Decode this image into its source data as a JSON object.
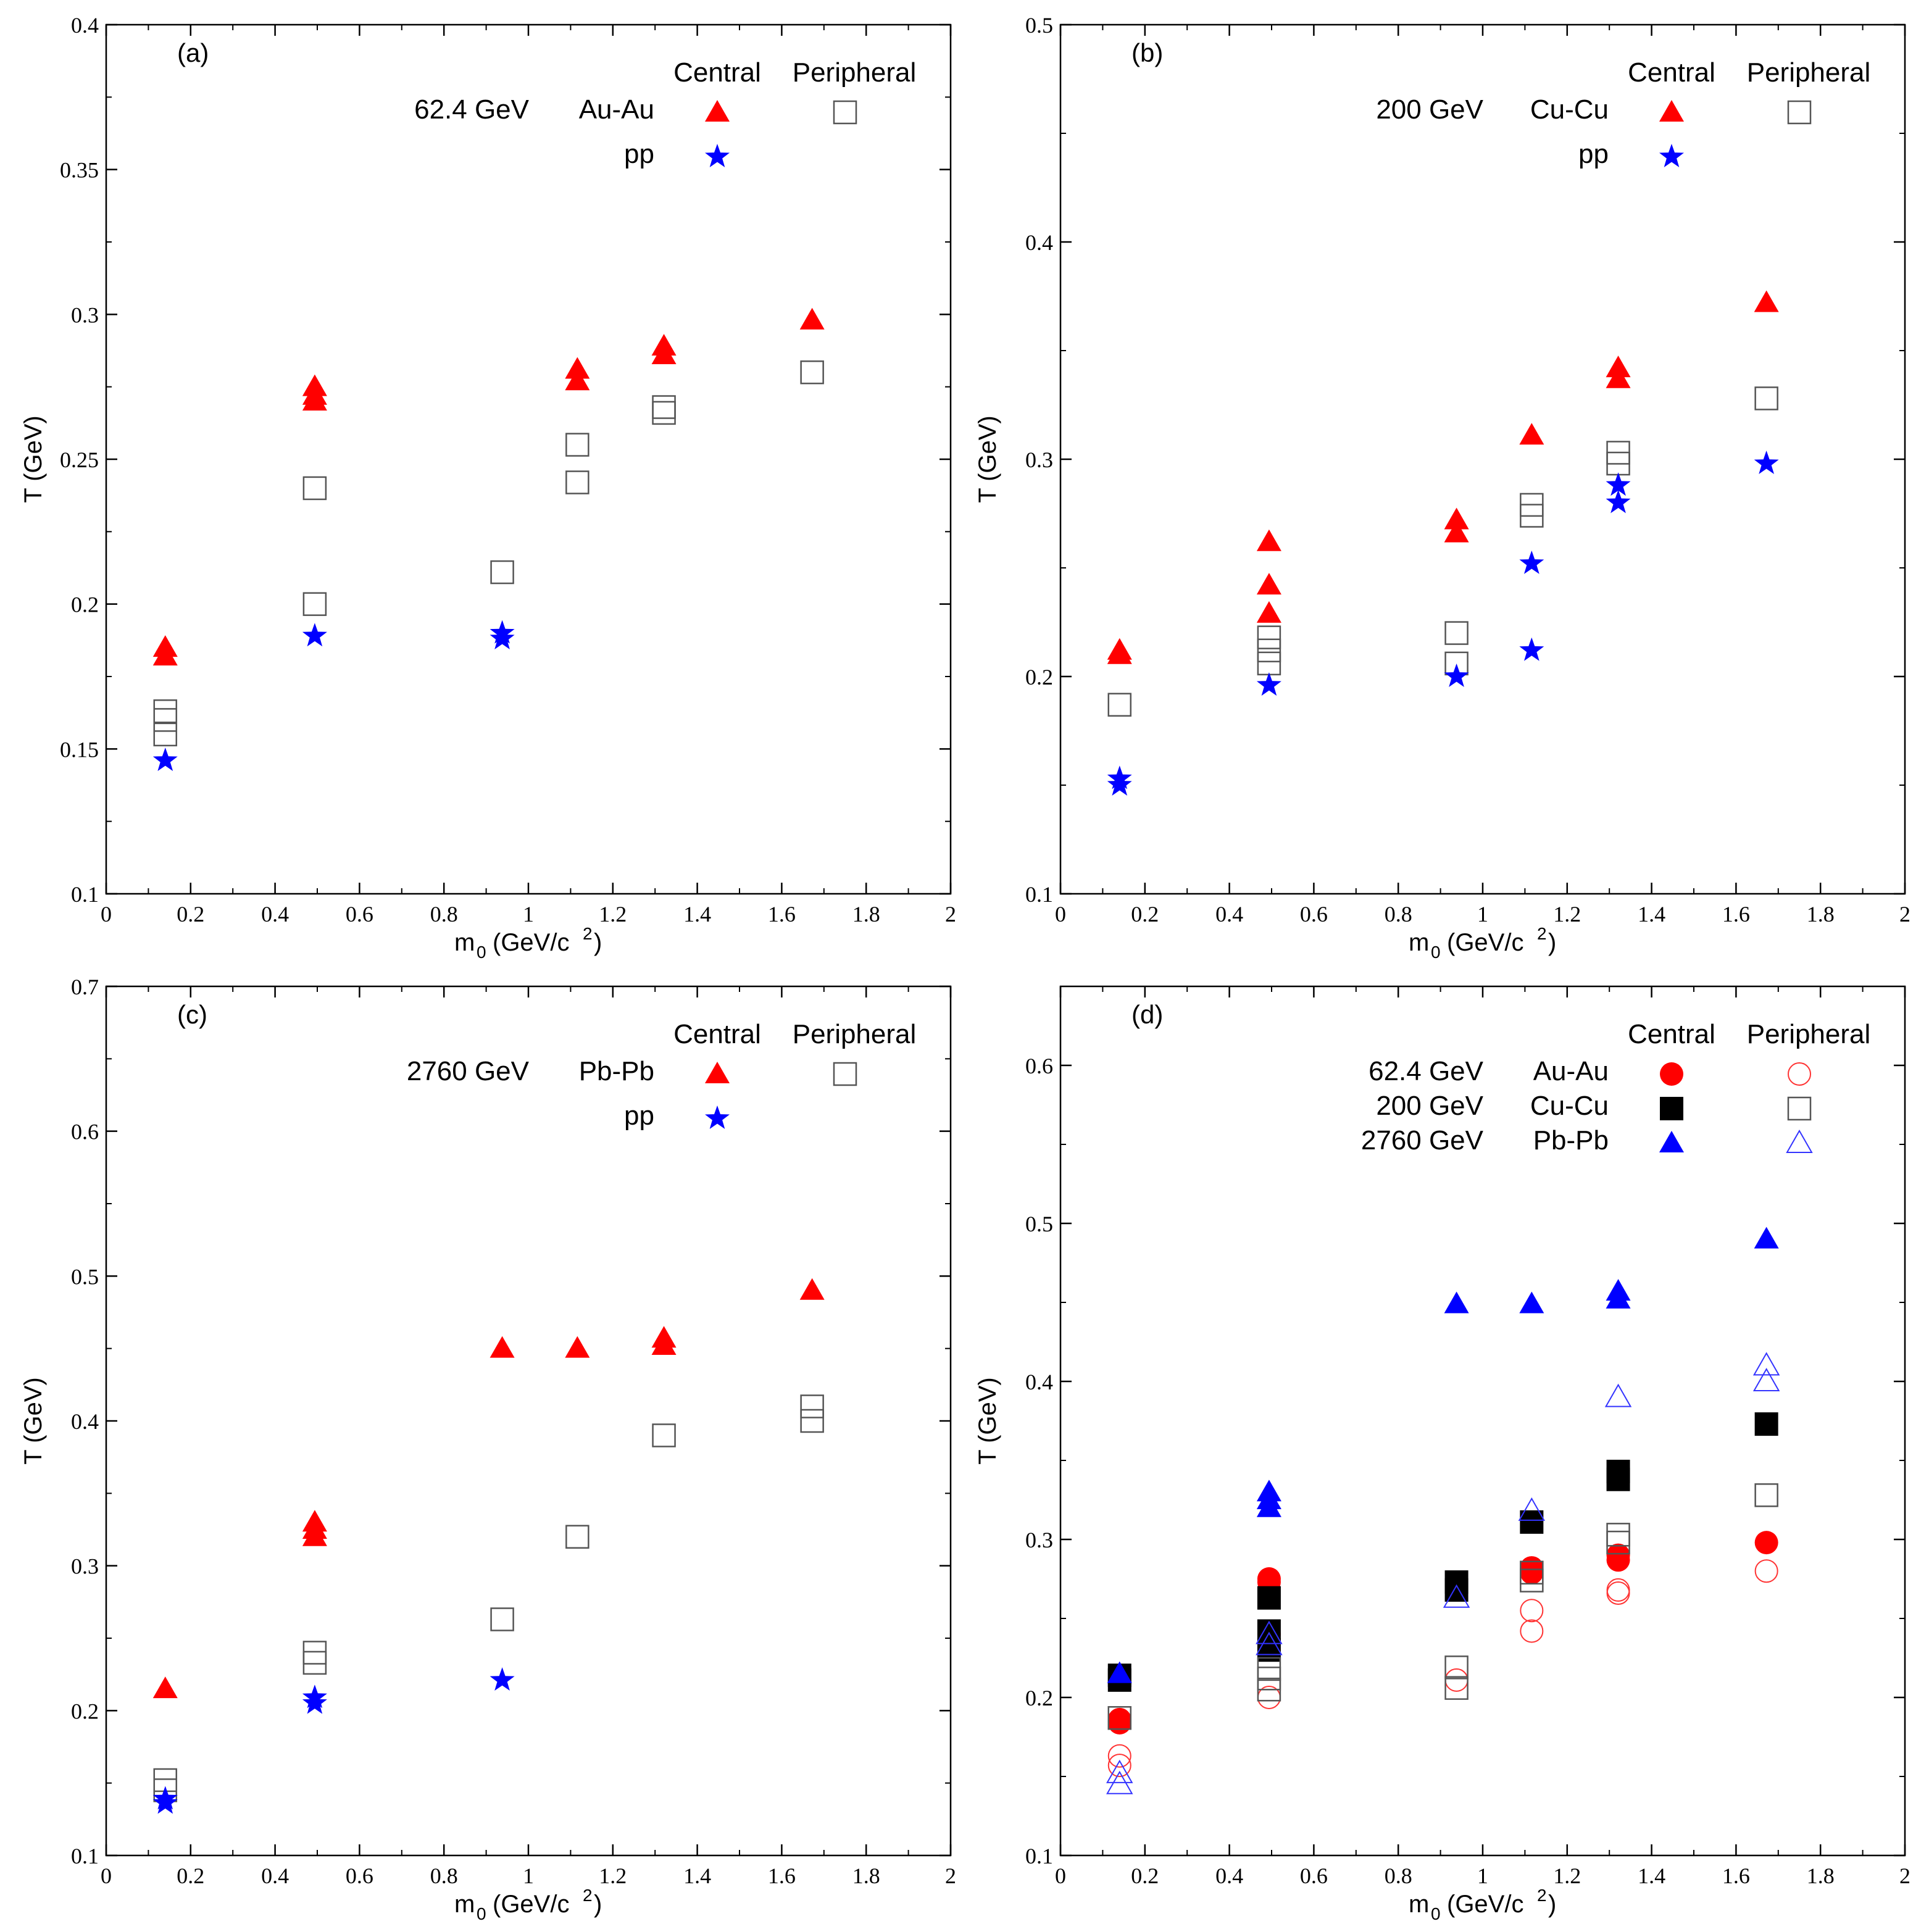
{
  "chart_data": [
    {
      "type": "scatter",
      "panel_label": "(a)",
      "xlabel": "m",
      "xlabel_sub": "0",
      "xlabel_unit": "(GeV/c",
      "xlabel_sup": "2",
      "xlabel_close": ")",
      "ylabel": "T (GeV)",
      "xlim": [
        0,
        2
      ],
      "ylim": [
        0.1,
        0.4
      ],
      "xticks": [
        0,
        0.2,
        0.4,
        0.6,
        0.8,
        1,
        1.2,
        1.4,
        1.6,
        1.8,
        2
      ],
      "xtick_labels": [
        "0",
        "0.2",
        "0.4",
        "0.6",
        "0.8",
        "1",
        "1.2",
        "1.4",
        "1.6",
        "1.8",
        "2"
      ],
      "yticks": [
        0.1,
        0.15,
        0.2,
        0.25,
        0.3,
        0.35,
        0.4
      ],
      "ytick_labels": [
        "0.1",
        "0.15",
        "0.2",
        "0.25",
        "0.3",
        "0.35",
        "0.4"
      ],
      "legend": {
        "header_central": "Central",
        "header_peripheral": "Peripheral",
        "rows": [
          {
            "energy": "62.4 GeV",
            "system": "Au-Au",
            "central": "tri-red",
            "peripheral": "square-open"
          },
          {
            "energy": "",
            "system": "pp",
            "central": "star-blue",
            "peripheral": ""
          }
        ]
      },
      "series": [
        {
          "name": "62.4 GeV Au-Au Central",
          "marker": "tri-red",
          "points": [
            [
              0.14,
              0.182
            ],
            [
              0.14,
              0.185
            ],
            [
              0.494,
              0.27
            ],
            [
              0.494,
              0.272
            ],
            [
              0.494,
              0.275
            ],
            [
              0.938,
              null
            ],
            [
              1.116,
              0.277
            ],
            [
              1.116,
              0.281
            ],
            [
              1.321,
              0.286
            ],
            [
              1.321,
              0.289
            ],
            [
              1.672,
              0.298
            ]
          ]
        },
        {
          "name": "62.4 GeV Au-Au Peripheral",
          "marker": "square-open",
          "points": [
            [
              0.14,
              0.155
            ],
            [
              0.14,
              0.16
            ],
            [
              0.14,
              0.163
            ],
            [
              0.494,
              0.2
            ],
            [
              0.494,
              0.24
            ],
            [
              0.938,
              0.211
            ],
            [
              1.116,
              0.242
            ],
            [
              1.116,
              0.255
            ],
            [
              1.321,
              0.266
            ],
            [
              1.321,
              0.268
            ],
            [
              1.672,
              0.28
            ]
          ]
        },
        {
          "name": "pp",
          "marker": "star-blue",
          "points": [
            [
              0.14,
              0.146
            ],
            [
              0.494,
              0.189
            ],
            [
              0.938,
              0.188
            ],
            [
              0.938,
              0.19
            ]
          ]
        }
      ]
    },
    {
      "type": "scatter",
      "panel_label": "(b)",
      "xlabel": "m",
      "xlabel_sub": "0",
      "xlabel_unit": "(GeV/c",
      "xlabel_sup": "2",
      "xlabel_close": ")",
      "ylabel": "T (GeV)",
      "xlim": [
        0,
        2
      ],
      "ylim": [
        0.1,
        0.5
      ],
      "xticks": [
        0,
        0.2,
        0.4,
        0.6,
        0.8,
        1,
        1.2,
        1.4,
        1.6,
        1.8,
        2
      ],
      "xtick_labels": [
        "0",
        "0.2",
        "0.4",
        "0.6",
        "0.8",
        "1",
        "1.2",
        "1.4",
        "1.6",
        "1.8",
        "2"
      ],
      "yticks": [
        0.1,
        0.2,
        0.3,
        0.4,
        0.5
      ],
      "ytick_labels": [
        "0.1",
        "0.2",
        "0.3",
        "0.4",
        "0.5"
      ],
      "legend": {
        "header_central": "Central",
        "header_peripheral": "Peripheral",
        "rows": [
          {
            "energy": "200 GeV",
            "system": "Cu-Cu",
            "central": "tri-red",
            "peripheral": "square-open"
          },
          {
            "energy": "",
            "system": "pp",
            "central": "star-blue",
            "peripheral": ""
          }
        ]
      },
      "series": [
        {
          "name": "200 GeV Cu-Cu Central",
          "marker": "tri-red",
          "points": [
            [
              0.14,
              0.21
            ],
            [
              0.14,
              0.212
            ],
            [
              0.494,
              0.229
            ],
            [
              0.494,
              0.242
            ],
            [
              0.494,
              0.262
            ],
            [
              0.938,
              0.266
            ],
            [
              0.938,
              0.272
            ],
            [
              1.116,
              0.311
            ],
            [
              1.321,
              0.337
            ],
            [
              1.321,
              0.342
            ],
            [
              1.672,
              0.372
            ]
          ]
        },
        {
          "name": "200 GeV Cu-Cu Peripheral",
          "marker": "square-open",
          "points": [
            [
              0.14,
              0.187
            ],
            [
              0.494,
              0.206
            ],
            [
              0.494,
              0.212
            ],
            [
              0.494,
              0.218
            ],
            [
              0.938,
              0.206
            ],
            [
              0.938,
              0.22
            ],
            [
              1.116,
              0.274
            ],
            [
              1.116,
              0.279
            ],
            [
              1.321,
              0.298
            ],
            [
              1.321,
              0.303
            ],
            [
              1.672,
              0.328
            ]
          ]
        },
        {
          "name": "pp",
          "marker": "star-blue",
          "points": [
            [
              0.14,
              0.15
            ],
            [
              0.14,
              0.153
            ],
            [
              0.494,
              0.196
            ],
            [
              0.938,
              0.2
            ],
            [
              1.116,
              0.212
            ],
            [
              1.116,
              0.252
            ],
            [
              1.321,
              0.28
            ],
            [
              1.321,
              0.288
            ],
            [
              1.672,
              0.298
            ]
          ]
        }
      ]
    },
    {
      "type": "scatter",
      "panel_label": "(c)",
      "xlabel": "m",
      "xlabel_sub": "0",
      "xlabel_unit": "(GeV/c",
      "xlabel_sup": "2",
      "xlabel_close": ")",
      "ylabel": "T (GeV)",
      "xlim": [
        0,
        2
      ],
      "ylim": [
        0.1,
        0.7
      ],
      "xticks": [
        0,
        0.2,
        0.4,
        0.6,
        0.8,
        1,
        1.2,
        1.4,
        1.6,
        1.8,
        2
      ],
      "xtick_labels": [
        "0",
        "0.2",
        "0.4",
        "0.6",
        "0.8",
        "1",
        "1.2",
        "1.4",
        "1.6",
        "1.8",
        "2"
      ],
      "yticks": [
        0.1,
        0.2,
        0.3,
        0.4,
        0.5,
        0.6,
        0.7
      ],
      "ytick_labels": [
        "0.1",
        "0.2",
        "0.3",
        "0.4",
        "0.5",
        "0.6",
        "0.7"
      ],
      "legend": {
        "header_central": "Central",
        "header_peripheral": "Peripheral",
        "rows": [
          {
            "energy": "2760 GeV",
            "system": "Pb-Pb",
            "central": "tri-red",
            "peripheral": "square-open"
          },
          {
            "energy": "",
            "system": "pp",
            "central": "star-blue",
            "peripheral": ""
          }
        ]
      },
      "series": [
        {
          "name": "2760 GeV Pb-Pb Central",
          "marker": "tri-red",
          "points": [
            [
              0.14,
              0.215
            ],
            [
              0.494,
              0.32
            ],
            [
              0.494,
              0.325
            ],
            [
              0.494,
              0.33
            ],
            [
              0.938,
              0.45
            ],
            [
              1.116,
              0.45
            ],
            [
              1.321,
              0.452
            ],
            [
              1.321,
              0.457
            ],
            [
              1.672,
              0.49
            ]
          ]
        },
        {
          "name": "2760 GeV Pb-Pb Peripheral",
          "marker": "square-open",
          "points": [
            [
              0.14,
              0.145
            ],
            [
              0.14,
              0.152
            ],
            [
              0.494,
              0.233
            ],
            [
              0.494,
              0.24
            ],
            [
              0.938,
              0.263
            ],
            [
              1.116,
              0.32
            ],
            [
              1.321,
              0.39
            ],
            [
              1.672,
              0.4
            ],
            [
              1.672,
              0.41
            ]
          ]
        },
        {
          "name": "pp",
          "marker": "star-blue",
          "points": [
            [
              0.14,
              0.136
            ],
            [
              0.14,
              0.139
            ],
            [
              0.494,
              0.205
            ],
            [
              0.494,
              0.209
            ],
            [
              0.938,
              0.221
            ]
          ]
        }
      ]
    },
    {
      "type": "scatter",
      "panel_label": "(d)",
      "xlabel": "m",
      "xlabel_sub": "0",
      "xlabel_unit": "(GeV/c",
      "xlabel_sup": "2",
      "xlabel_close": ")",
      "ylabel": "T (GeV)",
      "xlim": [
        0,
        2
      ],
      "ylim": [
        0.1,
        0.65
      ],
      "xticks": [
        0,
        0.2,
        0.4,
        0.6,
        0.8,
        1,
        1.2,
        1.4,
        1.6,
        1.8,
        2
      ],
      "xtick_labels": [
        "0",
        "0.2",
        "0.4",
        "0.6",
        "0.8",
        "1",
        "1.2",
        "1.4",
        "1.6",
        "1.8",
        "2"
      ],
      "yticks": [
        0.1,
        0.2,
        0.3,
        0.4,
        0.5,
        0.6
      ],
      "ytick_labels": [
        "0.1",
        "0.2",
        "0.3",
        "0.4",
        "0.5",
        "0.6"
      ],
      "legend": {
        "header_central": "Central",
        "header_peripheral": "Peripheral",
        "rows": [
          {
            "energy": "62.4 GeV",
            "system": "Au-Au",
            "central": "circle-red",
            "peripheral": "circle-red-open"
          },
          {
            "energy": "200 GeV",
            "system": "Cu-Cu",
            "central": "square-black",
            "peripheral": "square-open"
          },
          {
            "energy": "2760 GeV",
            "system": "Pb-Pb",
            "central": "tri-blue",
            "peripheral": "tri-blue-open"
          }
        ]
      },
      "series": [
        {
          "name": "62.4 GeV Au-Au Central",
          "marker": "circle-red",
          "points": [
            [
              0.14,
              0.184
            ],
            [
              0.14,
              0.186
            ],
            [
              0.494,
              0.273
            ],
            [
              0.494,
              0.275
            ],
            [
              1.116,
              0.279
            ],
            [
              1.116,
              0.282
            ],
            [
              1.321,
              0.287
            ],
            [
              1.321,
              0.29
            ],
            [
              1.672,
              0.298
            ]
          ]
        },
        {
          "name": "62.4 GeV Au-Au Peripheral",
          "marker": "circle-red-open",
          "points": [
            [
              0.14,
              0.157
            ],
            [
              0.14,
              0.163
            ],
            [
              0.494,
              0.2
            ],
            [
              0.494,
              0.24
            ],
            [
              0.938,
              0.211
            ],
            [
              1.116,
              0.242
            ],
            [
              1.116,
              0.255
            ],
            [
              1.321,
              0.266
            ],
            [
              1.321,
              0.268
            ],
            [
              1.672,
              0.28
            ]
          ]
        },
        {
          "name": "200 GeV Cu-Cu Central",
          "marker": "square-black",
          "points": [
            [
              0.14,
              0.211
            ],
            [
              0.14,
              0.214
            ],
            [
              0.494,
              0.23
            ],
            [
              0.494,
              0.242
            ],
            [
              0.494,
              0.263
            ],
            [
              0.938,
              0.268
            ],
            [
              0.938,
              0.273
            ],
            [
              1.116,
              0.311
            ],
            [
              1.321,
              0.338
            ],
            [
              1.321,
              0.343
            ],
            [
              1.672,
              0.373
            ]
          ]
        },
        {
          "name": "200 GeV Cu-Cu Peripheral",
          "marker": "square-open",
          "points": [
            [
              0.14,
              0.187
            ],
            [
              0.494,
              0.205
            ],
            [
              0.494,
              0.212
            ],
            [
              0.494,
              0.218
            ],
            [
              0.938,
              0.206
            ],
            [
              0.938,
              0.219
            ],
            [
              1.116,
              0.274
            ],
            [
              1.116,
              0.279
            ],
            [
              1.321,
              0.298
            ],
            [
              1.321,
              0.303
            ],
            [
              1.672,
              0.328
            ]
          ]
        },
        {
          "name": "2760 GeV Pb-Pb Central",
          "marker": "tri-blue",
          "points": [
            [
              0.14,
              0.215
            ],
            [
              0.494,
              0.32
            ],
            [
              0.494,
              0.325
            ],
            [
              0.494,
              0.33
            ],
            [
              0.938,
              0.449
            ],
            [
              1.116,
              0.449
            ],
            [
              1.321,
              0.452
            ],
            [
              1.321,
              0.457
            ],
            [
              1.672,
              0.49
            ]
          ]
        },
        {
          "name": "2760 GeV Pb-Pb Peripheral",
          "marker": "tri-blue-open",
          "points": [
            [
              0.14,
              0.145
            ],
            [
              0.14,
              0.152
            ],
            [
              0.494,
              0.233
            ],
            [
              0.494,
              0.24
            ],
            [
              0.938,
              0.263
            ],
            [
              1.116,
              0.318
            ],
            [
              1.321,
              0.39
            ],
            [
              1.672,
              0.4
            ],
            [
              1.672,
              0.41
            ]
          ]
        }
      ]
    }
  ],
  "colors": {
    "red": "#ff0000",
    "blue": "#0000ff",
    "black": "#000000",
    "open_square": "#555555",
    "open_circle": "#ff3333",
    "open_triangle": "#3333ff"
  }
}
